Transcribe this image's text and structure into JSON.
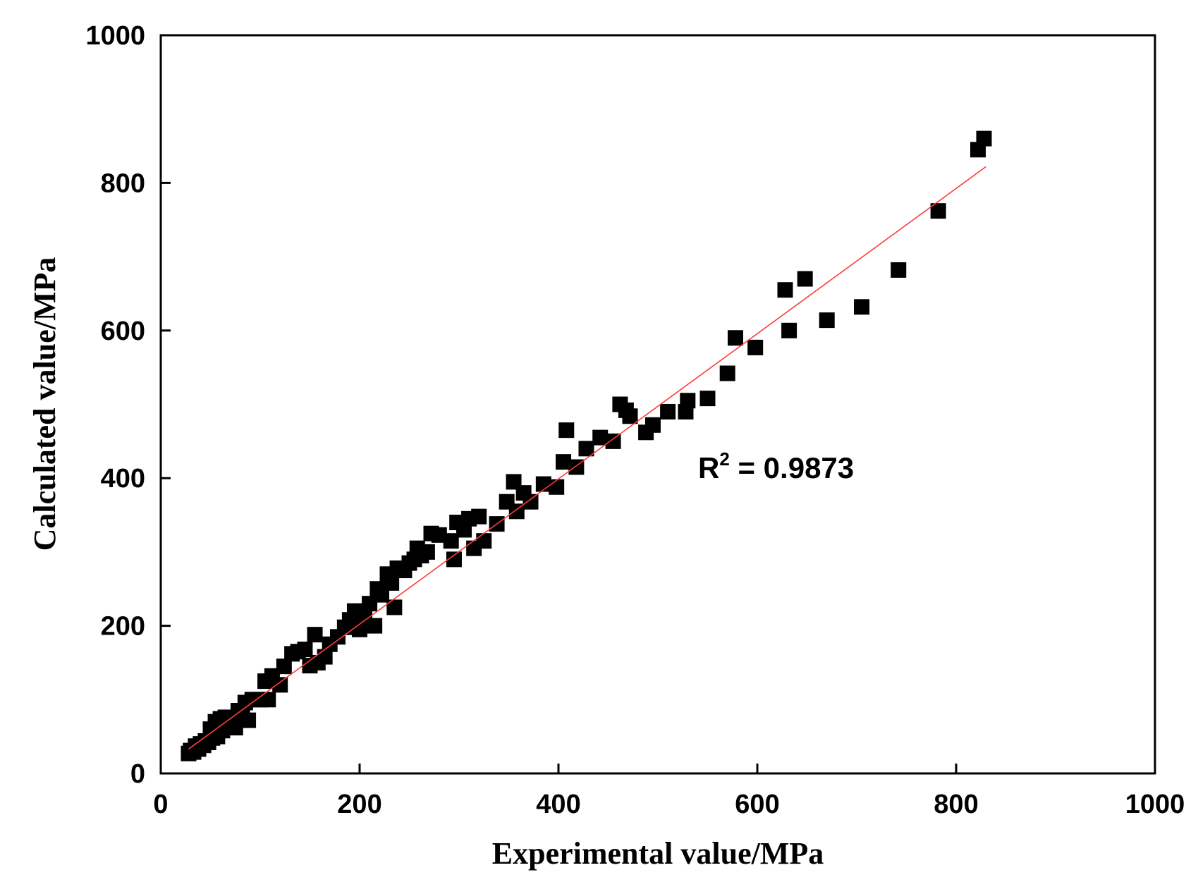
{
  "chart_data": {
    "type": "scatter",
    "xlabel": "Experimental value/MPa",
    "ylabel": "Calculated value/MPa",
    "xlim": [
      0,
      1000
    ],
    "ylim": [
      0,
      1000
    ],
    "x_ticks": [
      "0",
      "200",
      "400",
      "600",
      "800",
      "1000"
    ],
    "y_ticks": [
      "0",
      "200",
      "400",
      "600",
      "800",
      "1000"
    ],
    "grid": false,
    "marker": "filled-square",
    "marker_color": "#000000",
    "fit_line_color": "#ff3b3b",
    "annotation": {
      "base": "R",
      "superscript": "2",
      "text": " = 0.9873"
    },
    "fit_line": {
      "x": [
        28,
        830
      ],
      "y": [
        33,
        822
      ]
    },
    "points": [
      {
        "x": 28,
        "y": 27
      },
      {
        "x": 30,
        "y": 31
      },
      {
        "x": 33,
        "y": 29
      },
      {
        "x": 35,
        "y": 37
      },
      {
        "x": 38,
        "y": 33
      },
      {
        "x": 40,
        "y": 40
      },
      {
        "x": 43,
        "y": 38
      },
      {
        "x": 45,
        "y": 44
      },
      {
        "x": 48,
        "y": 42
      },
      {
        "x": 50,
        "y": 60
      },
      {
        "x": 52,
        "y": 48
      },
      {
        "x": 55,
        "y": 70
      },
      {
        "x": 57,
        "y": 50
      },
      {
        "x": 60,
        "y": 74
      },
      {
        "x": 62,
        "y": 58
      },
      {
        "x": 65,
        "y": 76
      },
      {
        "x": 68,
        "y": 64
      },
      {
        "x": 72,
        "y": 67
      },
      {
        "x": 75,
        "y": 62
      },
      {
        "x": 78,
        "y": 85
      },
      {
        "x": 82,
        "y": 78
      },
      {
        "x": 85,
        "y": 96
      },
      {
        "x": 88,
        "y": 72
      },
      {
        "x": 92,
        "y": 100
      },
      {
        "x": 100,
        "y": 100
      },
      {
        "x": 105,
        "y": 125
      },
      {
        "x": 108,
        "y": 100
      },
      {
        "x": 112,
        "y": 132
      },
      {
        "x": 120,
        "y": 120
      },
      {
        "x": 124,
        "y": 145
      },
      {
        "x": 132,
        "y": 162
      },
      {
        "x": 138,
        "y": 165
      },
      {
        "x": 145,
        "y": 168
      },
      {
        "x": 150,
        "y": 146
      },
      {
        "x": 155,
        "y": 188
      },
      {
        "x": 158,
        "y": 150
      },
      {
        "x": 165,
        "y": 158
      },
      {
        "x": 170,
        "y": 175
      },
      {
        "x": 178,
        "y": 185
      },
      {
        "x": 185,
        "y": 198
      },
      {
        "x": 190,
        "y": 208
      },
      {
        "x": 195,
        "y": 220
      },
      {
        "x": 200,
        "y": 195
      },
      {
        "x": 205,
        "y": 215
      },
      {
        "x": 210,
        "y": 230
      },
      {
        "x": 215,
        "y": 200
      },
      {
        "x": 218,
        "y": 250
      },
      {
        "x": 222,
        "y": 242
      },
      {
        "x": 228,
        "y": 270
      },
      {
        "x": 232,
        "y": 258
      },
      {
        "x": 235,
        "y": 225
      },
      {
        "x": 238,
        "y": 278
      },
      {
        "x": 245,
        "y": 275
      },
      {
        "x": 250,
        "y": 285
      },
      {
        "x": 255,
        "y": 290
      },
      {
        "x": 258,
        "y": 305
      },
      {
        "x": 262,
        "y": 295
      },
      {
        "x": 268,
        "y": 300
      },
      {
        "x": 272,
        "y": 325
      },
      {
        "x": 280,
        "y": 323
      },
      {
        "x": 292,
        "y": 315
      },
      {
        "x": 295,
        "y": 290
      },
      {
        "x": 298,
        "y": 340
      },
      {
        "x": 305,
        "y": 330
      },
      {
        "x": 310,
        "y": 345
      },
      {
        "x": 315,
        "y": 305
      },
      {
        "x": 320,
        "y": 348
      },
      {
        "x": 325,
        "y": 315
      },
      {
        "x": 338,
        "y": 338
      },
      {
        "x": 348,
        "y": 368
      },
      {
        "x": 355,
        "y": 395
      },
      {
        "x": 358,
        "y": 355
      },
      {
        "x": 365,
        "y": 380
      },
      {
        "x": 372,
        "y": 368
      },
      {
        "x": 385,
        "y": 392
      },
      {
        "x": 398,
        "y": 388
      },
      {
        "x": 405,
        "y": 422
      },
      {
        "x": 408,
        "y": 465
      },
      {
        "x": 418,
        "y": 415
      },
      {
        "x": 428,
        "y": 440
      },
      {
        "x": 442,
        "y": 455
      },
      {
        "x": 455,
        "y": 450
      },
      {
        "x": 462,
        "y": 500
      },
      {
        "x": 468,
        "y": 492
      },
      {
        "x": 472,
        "y": 484
      },
      {
        "x": 488,
        "y": 462
      },
      {
        "x": 495,
        "y": 472
      },
      {
        "x": 510,
        "y": 490
      },
      {
        "x": 528,
        "y": 490
      },
      {
        "x": 530,
        "y": 505
      },
      {
        "x": 550,
        "y": 508
      },
      {
        "x": 570,
        "y": 542
      },
      {
        "x": 578,
        "y": 590
      },
      {
        "x": 598,
        "y": 577
      },
      {
        "x": 628,
        "y": 655
      },
      {
        "x": 632,
        "y": 600
      },
      {
        "x": 648,
        "y": 670
      },
      {
        "x": 670,
        "y": 614
      },
      {
        "x": 705,
        "y": 632
      },
      {
        "x": 742,
        "y": 682
      },
      {
        "x": 782,
        "y": 762
      },
      {
        "x": 822,
        "y": 845
      },
      {
        "x": 828,
        "y": 860
      }
    ]
  }
}
